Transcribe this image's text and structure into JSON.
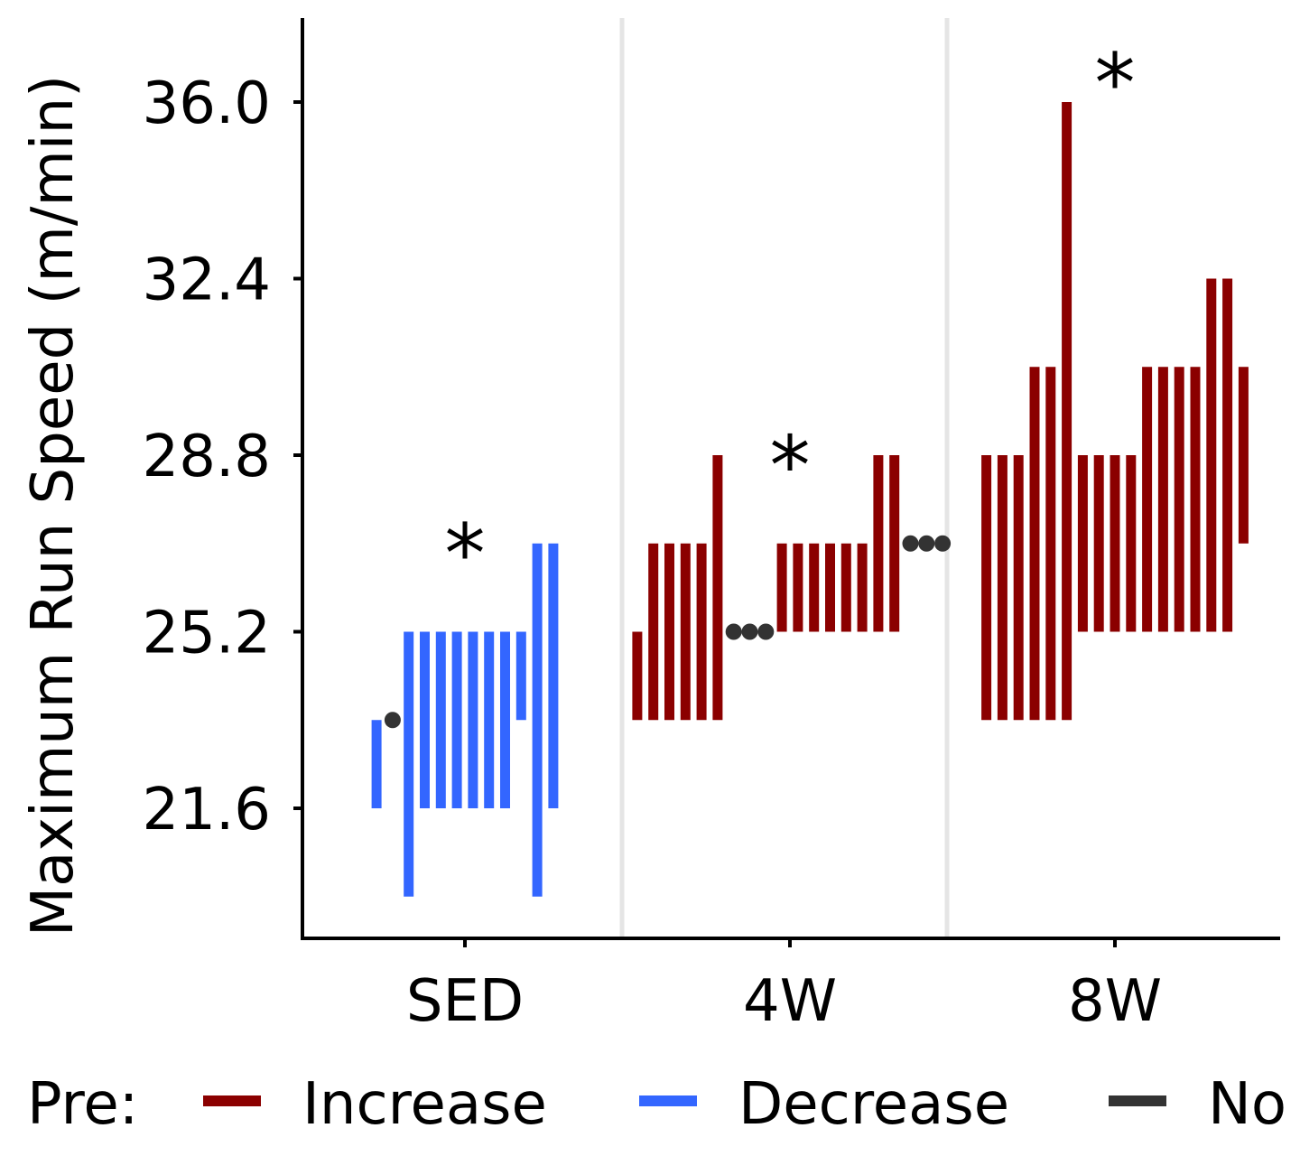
{
  "chart_data": {
    "type": "range",
    "ylabel": "Maximum Run Speed (m/min)",
    "ylim": [
      18.9,
      38.0
    ],
    "yticks": [
      "21.6",
      "25.2",
      "28.8",
      "32.4",
      "36.0"
    ],
    "categories": [
      "SED",
      "4W",
      "8W"
    ],
    "significance_marks": [
      {
        "group": "SED",
        "text": "*",
        "y": 26.8
      },
      {
        "group": "4W",
        "text": "*",
        "y": 28.6
      },
      {
        "group": "8W",
        "text": "*",
        "y": 36.4
      }
    ],
    "legend": {
      "title": "Pre:",
      "entries": [
        {
          "label": "Increase",
          "color": "#8B0000"
        },
        {
          "label": "Decrease",
          "color": "#3366FF"
        },
        {
          "label": "No",
          "color": "#333333"
        }
      ]
    },
    "grid": false,
    "colors": {
      "increase": "#8B0000",
      "decrease": "#3366FF",
      "nochange": "#333333",
      "separator": "#E5E5E5"
    },
    "series": [
      {
        "group": "SED",
        "subjects": [
          {
            "pre": 23.4,
            "post": 21.6,
            "change": "decrease"
          },
          {
            "pre": 23.4,
            "post": 23.4,
            "change": "none"
          },
          {
            "pre": 25.2,
            "post": 19.8,
            "change": "decrease"
          },
          {
            "pre": 25.2,
            "post": 21.6,
            "change": "decrease"
          },
          {
            "pre": 25.2,
            "post": 21.6,
            "change": "decrease"
          },
          {
            "pre": 25.2,
            "post": 21.6,
            "change": "decrease"
          },
          {
            "pre": 25.2,
            "post": 21.6,
            "change": "decrease"
          },
          {
            "pre": 25.2,
            "post": 21.6,
            "change": "decrease"
          },
          {
            "pre": 25.2,
            "post": 21.6,
            "change": "decrease"
          },
          {
            "pre": 25.2,
            "post": 23.4,
            "change": "decrease"
          },
          {
            "pre": 27.0,
            "post": 19.8,
            "change": "decrease"
          },
          {
            "pre": 27.0,
            "post": 21.6,
            "change": "decrease"
          }
        ]
      },
      {
        "group": "4W",
        "subjects": [
          {
            "pre": 23.4,
            "post": 25.2,
            "change": "increase"
          },
          {
            "pre": 23.4,
            "post": 27.0,
            "change": "increase"
          },
          {
            "pre": 23.4,
            "post": 27.0,
            "change": "increase"
          },
          {
            "pre": 23.4,
            "post": 27.0,
            "change": "increase"
          },
          {
            "pre": 23.4,
            "post": 27.0,
            "change": "increase"
          },
          {
            "pre": 23.4,
            "post": 28.8,
            "change": "increase"
          },
          {
            "pre": 25.2,
            "post": 25.2,
            "change": "none"
          },
          {
            "pre": 25.2,
            "post": 25.2,
            "change": "none"
          },
          {
            "pre": 25.2,
            "post": 25.2,
            "change": "none"
          },
          {
            "pre": 25.2,
            "post": 27.0,
            "change": "increase"
          },
          {
            "pre": 25.2,
            "post": 27.0,
            "change": "increase"
          },
          {
            "pre": 25.2,
            "post": 27.0,
            "change": "increase"
          },
          {
            "pre": 25.2,
            "post": 27.0,
            "change": "increase"
          },
          {
            "pre": 25.2,
            "post": 27.0,
            "change": "increase"
          },
          {
            "pre": 25.2,
            "post": 27.0,
            "change": "increase"
          },
          {
            "pre": 25.2,
            "post": 28.8,
            "change": "increase"
          },
          {
            "pre": 25.2,
            "post": 28.8,
            "change": "increase"
          },
          {
            "pre": 27.0,
            "post": 27.0,
            "change": "none"
          },
          {
            "pre": 27.0,
            "post": 27.0,
            "change": "none"
          },
          {
            "pre": 27.0,
            "post": 27.0,
            "change": "none"
          }
        ]
      },
      {
        "group": "8W",
        "subjects": [
          {
            "pre": 23.4,
            "post": 28.8,
            "change": "increase"
          },
          {
            "pre": 23.4,
            "post": 28.8,
            "change": "increase"
          },
          {
            "pre": 23.4,
            "post": 28.8,
            "change": "increase"
          },
          {
            "pre": 23.4,
            "post": 30.6,
            "change": "increase"
          },
          {
            "pre": 23.4,
            "post": 30.6,
            "change": "increase"
          },
          {
            "pre": 23.4,
            "post": 36.0,
            "change": "increase"
          },
          {
            "pre": 25.2,
            "post": 28.8,
            "change": "increase"
          },
          {
            "pre": 25.2,
            "post": 28.8,
            "change": "increase"
          },
          {
            "pre": 25.2,
            "post": 28.8,
            "change": "increase"
          },
          {
            "pre": 25.2,
            "post": 28.8,
            "change": "increase"
          },
          {
            "pre": 25.2,
            "post": 30.6,
            "change": "increase"
          },
          {
            "pre": 25.2,
            "post": 30.6,
            "change": "increase"
          },
          {
            "pre": 25.2,
            "post": 30.6,
            "change": "increase"
          },
          {
            "pre": 25.2,
            "post": 30.6,
            "change": "increase"
          },
          {
            "pre": 25.2,
            "post": 32.4,
            "change": "increase"
          },
          {
            "pre": 25.2,
            "post": 32.4,
            "change": "increase"
          },
          {
            "pre": 27.0,
            "post": 30.6,
            "change": "increase"
          }
        ]
      }
    ]
  }
}
